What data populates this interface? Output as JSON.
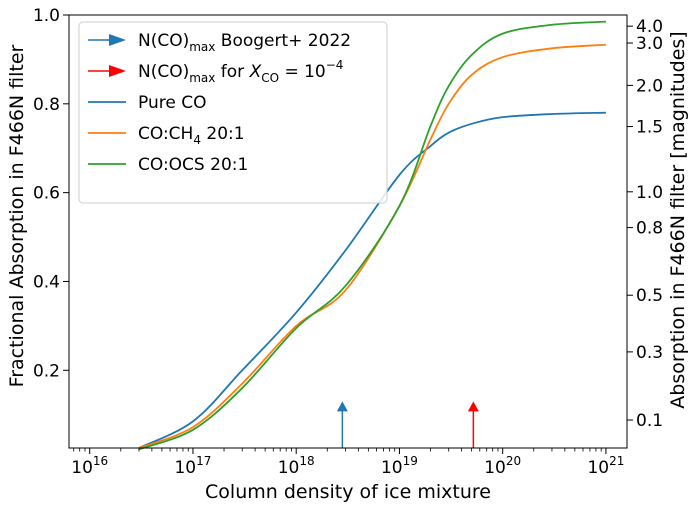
{
  "chart_data": {
    "type": "line",
    "title": "",
    "xlabel": "Column density of ice mixture",
    "ylabel": "Fractional Absorption in F466N filter",
    "ylabel_right": "Absorption in F466N filter [magnitudes]",
    "xscale": "log",
    "xlim": [
      6300000000000000.0,
      1.6e+21
    ],
    "ylim": [
      0.025,
      1.0
    ],
    "x_ticks": [
      {
        "value": 1e+16,
        "base": "10",
        "exp": "16"
      },
      {
        "value": 1e+17,
        "base": "10",
        "exp": "17"
      },
      {
        "value": 1e+18,
        "base": "10",
        "exp": "18"
      },
      {
        "value": 1e+19,
        "base": "10",
        "exp": "19"
      },
      {
        "value": 1e+20,
        "base": "10",
        "exp": "20"
      },
      {
        "value": 1e+21,
        "base": "10",
        "exp": "21"
      }
    ],
    "y_ticks": [
      {
        "value": 0.2,
        "label": "0.2"
      },
      {
        "value": 0.4,
        "label": "0.4"
      },
      {
        "value": 0.6,
        "label": "0.6"
      },
      {
        "value": 0.8,
        "label": "0.8"
      },
      {
        "value": 1.0,
        "label": "1.0"
      }
    ],
    "y_ticks_right": [
      {
        "mag": 0.1,
        "label": "0.1"
      },
      {
        "mag": 0.3,
        "label": "0.3"
      },
      {
        "mag": 0.5,
        "label": "0.5"
      },
      {
        "mag": 0.8,
        "label": "0.8"
      },
      {
        "mag": 1.0,
        "label": "1.0"
      },
      {
        "mag": 1.5,
        "label": "1.5"
      },
      {
        "mag": 2.0,
        "label": "2.0"
      },
      {
        "mag": 3.0,
        "label": "3.0"
      },
      {
        "mag": 4.0,
        "label": "4.0"
      }
    ],
    "grid": false,
    "legend_position": "top-left",
    "series": [
      {
        "name": "Pure CO",
        "color": "#1f77b4",
        "x": [
          3e+16,
          1e+17,
          3e+17,
          1e+18,
          3e+18,
          1e+19,
          2e+19,
          3e+19,
          5e+19,
          1e+20,
          3e+20,
          1e+21
        ],
        "y": [
          0.025,
          0.085,
          0.2,
          0.33,
          0.47,
          0.64,
          0.705,
          0.735,
          0.755,
          0.77,
          0.777,
          0.78
        ]
      },
      {
        "name": "CO:CH$_4$ 20:1",
        "name_parts": [
          "CO:CH",
          "4",
          " 20:1"
        ],
        "color": "#ff7f0e",
        "x": [
          3e+16,
          1e+17,
          3e+17,
          1e+18,
          3e+18,
          1e+19,
          2e+19,
          3e+19,
          5e+19,
          1e+20,
          3e+20,
          1e+21
        ],
        "y": [
          0.025,
          0.072,
          0.17,
          0.3,
          0.38,
          0.57,
          0.72,
          0.8,
          0.865,
          0.905,
          0.925,
          0.933
        ]
      },
      {
        "name": "CO:OCS 20:1",
        "color": "#2ca02c",
        "x": [
          3e+16,
          1e+17,
          3e+17,
          1e+18,
          3e+18,
          1e+19,
          2e+19,
          3e+19,
          5e+19,
          1e+20,
          3e+20,
          1e+21
        ],
        "y": [
          0.022,
          0.066,
          0.16,
          0.295,
          0.39,
          0.57,
          0.75,
          0.84,
          0.91,
          0.958,
          0.978,
          0.985
        ]
      }
    ],
    "markers": [
      {
        "name": "N(CO)$_{max}$ Boogert+ 2022",
        "x": 2.8e+18,
        "arrow_top": 0.13,
        "color": "#1f77b4"
      },
      {
        "name": "N(CO)$_{max}$ for $X_{CO}=10^{-4}$",
        "x": 5.2e+19,
        "arrow_top": 0.13,
        "color": "#ff0000"
      }
    ],
    "legend": [
      {
        "kind": "arrow",
        "color": "#1f77b4",
        "parts": [
          "N(CO)",
          "max",
          " Boogert+ 2022"
        ]
      },
      {
        "kind": "arrow",
        "color": "#ff0000",
        "parts": [
          "N(CO)",
          "max",
          " for ",
          "X",
          "CO",
          " = 10",
          "−4"
        ]
      },
      {
        "kind": "line",
        "color": "#1f77b4",
        "parts": [
          "Pure CO"
        ]
      },
      {
        "kind": "line",
        "color": "#ff7f0e",
        "parts": [
          "CO:CH",
          "4",
          " 20:1"
        ]
      },
      {
        "kind": "line",
        "color": "#2ca02c",
        "parts": [
          "CO:OCS 20:1"
        ]
      }
    ]
  }
}
